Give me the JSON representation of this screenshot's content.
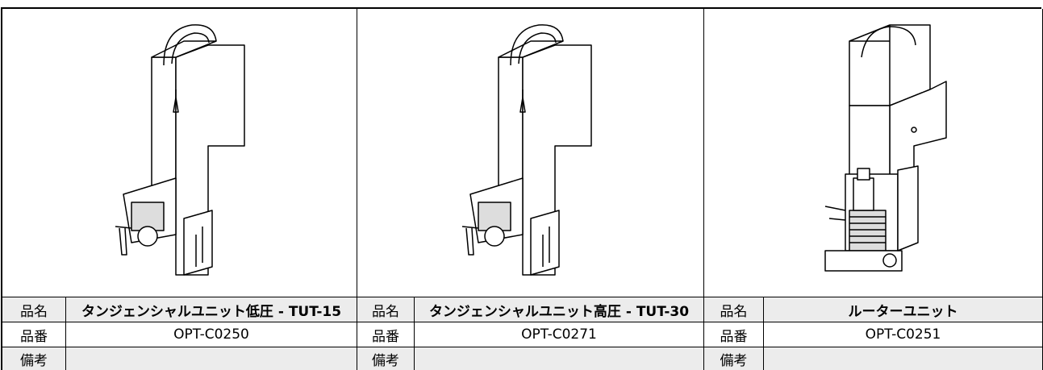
{
  "products": [
    {
      "name_label": "品名",
      "name": "タンジェンシャルユニット低圧 - TUT-15",
      "number_label": "品番",
      "number": "OPT-C0250",
      "remarks_label": "備考"
    },
    {
      "name_label": "品名",
      "name": "タンジェンシャルユニット高圧 - TUT-30",
      "number_label": "品番",
      "number": "OPT-C0271",
      "remarks_label": "備考"
    },
    {
      "name_label": "品名",
      "name": "ルーターユニット",
      "number_label": "品番",
      "number": "OPT-C0251",
      "remarks_label": "備考"
    }
  ]
}
